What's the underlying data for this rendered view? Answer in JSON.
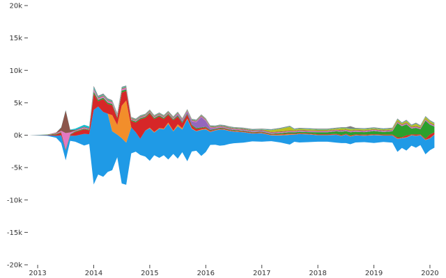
{
  "chart_data": {
    "type": "area",
    "layout": "streamgraph",
    "title": "",
    "xlabel": "",
    "ylabel": "",
    "ylim": [
      -20000,
      20000
    ],
    "xlim": [
      2012.85,
      2020.1
    ],
    "grid": false,
    "legend": "none",
    "y_ticks": [
      {
        "value": 20000,
        "label": "20k"
      },
      {
        "value": 15000,
        "label": "15k"
      },
      {
        "value": 10000,
        "label": "10k"
      },
      {
        "value": 5000,
        "label": "5k"
      },
      {
        "value": 0,
        "label": "0k"
      },
      {
        "value": -5000,
        "label": "-5k"
      },
      {
        "value": -10000,
        "label": "-10k"
      },
      {
        "value": -15000,
        "label": "-15k"
      },
      {
        "value": -20000,
        "label": "-20k"
      }
    ],
    "x_ticks": [
      {
        "value": 2013,
        "label": "2013"
      },
      {
        "value": 2014,
        "label": "2014"
      },
      {
        "value": 2015,
        "label": "2015"
      },
      {
        "value": 2016,
        "label": "2016"
      },
      {
        "value": 2017,
        "label": "2017"
      },
      {
        "value": 2018,
        "label": "2018"
      },
      {
        "value": 2019,
        "label": "2019"
      },
      {
        "value": 2020,
        "label": "2020"
      }
    ],
    "x": [
      2012.85,
      2013.0,
      2013.17,
      2013.33,
      2013.42,
      2013.5,
      2013.58,
      2013.67,
      2013.83,
      2013.92,
      2014.0,
      2014.08,
      2014.17,
      2014.25,
      2014.33,
      2014.42,
      2014.5,
      2014.58,
      2014.67,
      2014.75,
      2014.83,
      2014.92,
      2015.0,
      2015.08,
      2015.17,
      2015.25,
      2015.33,
      2015.42,
      2015.5,
      2015.58,
      2015.67,
      2015.75,
      2015.83,
      2015.92,
      2016.0,
      2016.08,
      2016.17,
      2016.25,
      2016.33,
      2016.42,
      2016.5,
      2016.67,
      2016.83,
      2017.0,
      2017.17,
      2017.33,
      2017.5,
      2017.58,
      2017.67,
      2017.83,
      2018.0,
      2018.17,
      2018.33,
      2018.42,
      2018.5,
      2018.58,
      2018.67,
      2018.83,
      2019.0,
      2019.17,
      2019.33,
      2019.42,
      2019.5,
      2019.58,
      2019.67,
      2019.75,
      2019.83,
      2019.92,
      2020.0,
      2020.08
    ],
    "series": [
      {
        "color": "#1f9ae6",
        "values": [
          0,
          50,
          100,
          300,
          1200,
          1500,
          800,
          900,
          1800,
          1500,
          11500,
          10500,
          10000,
          9000,
          6000,
          3500,
          7000,
          6500,
          4000,
          3000,
          2500,
          4000,
          5000,
          3500,
          4500,
          4000,
          5500,
          3500,
          5000,
          3500,
          6500,
          3500,
          3000,
          4000,
          3500,
          2000,
          2200,
          2500,
          2400,
          2000,
          1800,
          1600,
          1200,
          1300,
          900,
          1100,
          1500,
          1100,
          1300,
          1200,
          1000,
          1000,
          1200,
          1100,
          1300,
          1200,
          1100,
          1000,
          1200,
          1000,
          1100,
          2000,
          1500,
          2000,
          1600,
          1800,
          1500,
          2200,
          1800,
          2000
        ]
      },
      {
        "color": "#f28e2b",
        "values": [
          0,
          0,
          0,
          0,
          0,
          0,
          0,
          0,
          0,
          0,
          0,
          0,
          0,
          0,
          2500,
          1500,
          5000,
          6500,
          0,
          0,
          0,
          0,
          100,
          100,
          100,
          100,
          200,
          100,
          300,
          200,
          100,
          100,
          50,
          100,
          100,
          50,
          50,
          50,
          50,
          50,
          50,
          50,
          50,
          50,
          50,
          100,
          100,
          50,
          50,
          50,
          50,
          50,
          50,
          50,
          50,
          50,
          50,
          50,
          50,
          50,
          50,
          50,
          50,
          50,
          50,
          50,
          50,
          50,
          50,
          50
        ]
      },
      {
        "color": "#d62728",
        "values": [
          0,
          20,
          50,
          200,
          400,
          100,
          100,
          600,
          700,
          600,
          2500,
          800,
          2000,
          1500,
          1500,
          1000,
          2000,
          1500,
          1000,
          1500,
          3000,
          2000,
          2200,
          2000,
          1800,
          1500,
          1200,
          1600,
          1200,
          800,
          600,
          400,
          300,
          200,
          200,
          150,
          100,
          100,
          100,
          100,
          100,
          100,
          100,
          100,
          100,
          100,
          100,
          100,
          100,
          100,
          100,
          100,
          100,
          100,
          100,
          100,
          100,
          100,
          100,
          100,
          100,
          200,
          100,
          300,
          100,
          200,
          100,
          150,
          600,
          300
        ]
      },
      {
        "color": "#2ca02c",
        "values": [
          0,
          20,
          50,
          100,
          100,
          100,
          100,
          100,
          100,
          100,
          300,
          200,
          200,
          200,
          200,
          200,
          300,
          200,
          150,
          150,
          150,
          150,
          150,
          150,
          150,
          150,
          150,
          150,
          150,
          150,
          150,
          150,
          150,
          100,
          100,
          100,
          100,
          100,
          100,
          100,
          100,
          100,
          100,
          100,
          100,
          150,
          200,
          200,
          200,
          200,
          300,
          300,
          400,
          500,
          400,
          500,
          400,
          400,
          500,
          400,
          500,
          2200,
          1700,
          1700,
          900,
          1000,
          800,
          2800,
          1500,
          900
        ]
      },
      {
        "color": "#9467bd",
        "values": [
          0,
          0,
          0,
          0,
          0,
          0,
          0,
          0,
          0,
          0,
          50,
          50,
          50,
          50,
          50,
          50,
          50,
          50,
          50,
          50,
          50,
          50,
          50,
          50,
          50,
          50,
          50,
          50,
          200,
          200,
          300,
          500,
          900,
          1600,
          900,
          300,
          100,
          100,
          50,
          50,
          50,
          50,
          50,
          50,
          50,
          50,
          50,
          50,
          50,
          50,
          50,
          50,
          50,
          50,
          50,
          50,
          50,
          50,
          50,
          50,
          50,
          50,
          50,
          50,
          50,
          50,
          50,
          50,
          50,
          50
        ]
      },
      {
        "color": "#e377c2",
        "values": [
          0,
          0,
          0,
          100,
          200,
          2500,
          300,
          100,
          200,
          100,
          300,
          200,
          200,
          200,
          200,
          200,
          200,
          200,
          100,
          100,
          100,
          100,
          100,
          100,
          100,
          100,
          100,
          100,
          100,
          100,
          100,
          100,
          100,
          100,
          100,
          100,
          100,
          100,
          100,
          100,
          100,
          100,
          100,
          100,
          100,
          100,
          100,
          100,
          100,
          100,
          100,
          100,
          100,
          100,
          100,
          100,
          100,
          100,
          100,
          100,
          100,
          100,
          100,
          100,
          100,
          100,
          100,
          100,
          100,
          100
        ]
      },
      {
        "color": "#8c564b",
        "values": [
          0,
          0,
          0,
          100,
          500,
          3500,
          400,
          100,
          100,
          100,
          100,
          100,
          100,
          100,
          100,
          100,
          100,
          100,
          100,
          100,
          100,
          100,
          100,
          100,
          100,
          100,
          100,
          100,
          100,
          100,
          100,
          100,
          100,
          100,
          100,
          100,
          100,
          100,
          100,
          100,
          100,
          100,
          100,
          100,
          100,
          100,
          100,
          100,
          100,
          100,
          100,
          100,
          100,
          100,
          100,
          100,
          100,
          100,
          100,
          100,
          100,
          100,
          100,
          100,
          100,
          100,
          100,
          100,
          100,
          100
        ]
      },
      {
        "color": "#bcbd22",
        "values": [
          0,
          0,
          0,
          0,
          0,
          0,
          0,
          0,
          0,
          0,
          50,
          50,
          50,
          50,
          50,
          50,
          50,
          50,
          50,
          50,
          50,
          50,
          50,
          50,
          50,
          50,
          50,
          50,
          50,
          50,
          50,
          50,
          50,
          50,
          50,
          50,
          50,
          50,
          50,
          50,
          50,
          50,
          50,
          50,
          300,
          400,
          600,
          200,
          200,
          200,
          150,
          150,
          150,
          300,
          200,
          250,
          200,
          200,
          150,
          150,
          150,
          300,
          200,
          300,
          200,
          400,
          200,
          300,
          300,
          200
        ]
      },
      {
        "color": "#17becf",
        "values": [
          0,
          0,
          0,
          0,
          50,
          50,
          50,
          200,
          300,
          300,
          200,
          100,
          100,
          100,
          100,
          100,
          100,
          100,
          50,
          50,
          50,
          50,
          50,
          50,
          50,
          50,
          50,
          50,
          50,
          50,
          50,
          50,
          50,
          50,
          50,
          50,
          50,
          50,
          50,
          50,
          50,
          50,
          50,
          50,
          50,
          50,
          50,
          50,
          50,
          50,
          50,
          50,
          50,
          50,
          50,
          50,
          50,
          50,
          50,
          50,
          50,
          50,
          50,
          50,
          50,
          50,
          50,
          50,
          50,
          50
        ]
      },
      {
        "color": "#7f7f7f",
        "values": [
          0,
          0,
          0,
          0,
          0,
          0,
          0,
          0,
          0,
          0,
          200,
          150,
          150,
          150,
          100,
          100,
          100,
          100,
          100,
          100,
          100,
          100,
          100,
          100,
          100,
          100,
          100,
          100,
          100,
          100,
          100,
          100,
          100,
          100,
          100,
          100,
          100,
          100,
          100,
          100,
          100,
          100,
          100,
          100,
          100,
          100,
          100,
          100,
          100,
          100,
          100,
          100,
          100,
          100,
          100,
          400,
          100,
          100,
          100,
          100,
          100,
          100,
          100,
          100,
          100,
          100,
          100,
          100,
          100,
          100
        ]
      }
    ]
  }
}
